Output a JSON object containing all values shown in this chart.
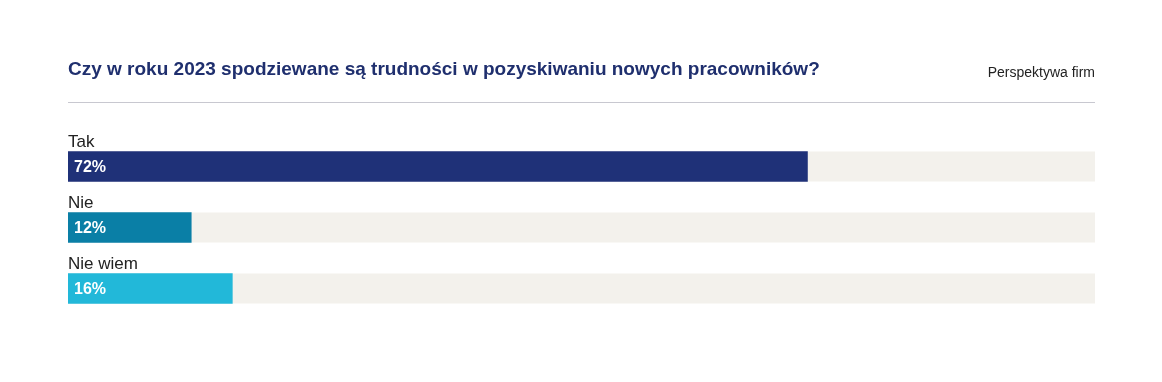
{
  "chart_data": {
    "type": "bar",
    "orientation": "horizontal",
    "title": "Czy w roku 2023 spodziewane są trudności w pozyskiwaniu nowych pracowników?",
    "subtitle": "Perspektywa firm",
    "categories": [
      "Tak",
      "Nie",
      "Nie wiem"
    ],
    "values": [
      72,
      12,
      16
    ],
    "colors": [
      "#1f3178",
      "#0a7fa6",
      "#22b8d9"
    ],
    "value_labels": [
      "72%",
      "12%",
      "16%"
    ],
    "xlim": [
      0,
      100
    ],
    "tick_labels": false,
    "legend": false
  }
}
